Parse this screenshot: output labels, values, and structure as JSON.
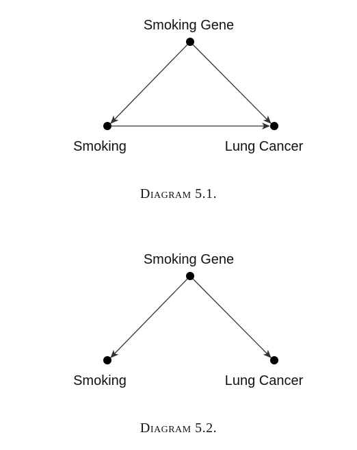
{
  "diagrams": [
    {
      "caption": "Diagram 5.1.",
      "nodes": {
        "gene": "Smoking Gene",
        "smoking": "Smoking",
        "cancer": "Lung Cancer"
      },
      "edges": [
        {
          "from": "Smoking Gene",
          "to": "Smoking"
        },
        {
          "from": "Smoking Gene",
          "to": "Lung Cancer"
        },
        {
          "from": "Smoking",
          "to": "Lung Cancer"
        }
      ]
    },
    {
      "caption": "Diagram 5.2.",
      "nodes": {
        "gene": "Smoking Gene",
        "smoking": "Smoking",
        "cancer": "Lung Cancer"
      },
      "edges": [
        {
          "from": "Smoking Gene",
          "to": "Smoking"
        },
        {
          "from": "Smoking Gene",
          "to": "Lung Cancer"
        }
      ]
    }
  ]
}
